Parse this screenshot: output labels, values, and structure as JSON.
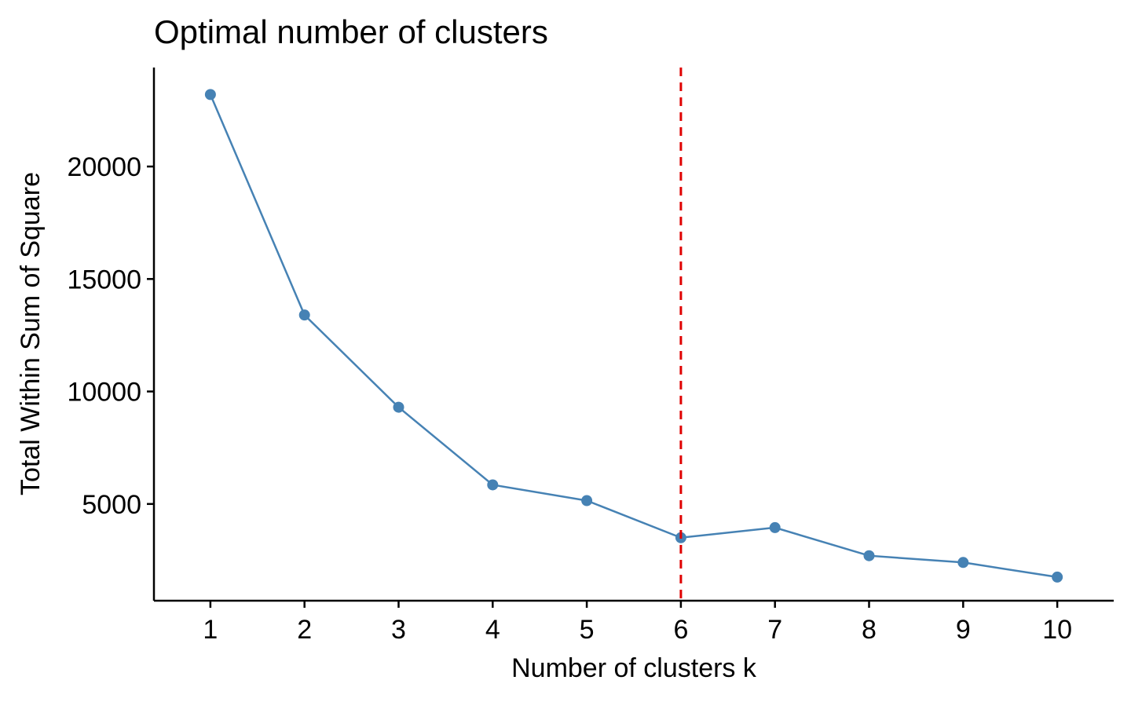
{
  "chart_data": {
    "type": "line",
    "title": "Optimal number of clusters",
    "xlabel": "Number of clusters k",
    "ylabel": "Total Within Sum of Square",
    "x": [
      1,
      2,
      3,
      4,
      5,
      6,
      7,
      8,
      9,
      10
    ],
    "xtick_labels": [
      "1",
      "2",
      "3",
      "4",
      "5",
      "6",
      "7",
      "8",
      "9",
      "10"
    ],
    "ytick_values": [
      5000,
      10000,
      15000,
      20000
    ],
    "ytick_labels": [
      "5000",
      "10000",
      "15000",
      "20000"
    ],
    "series": [
      {
        "values": [
          23200,
          13400,
          9300,
          5850,
          5150,
          3500,
          3950,
          2700,
          2400,
          1750
        ]
      }
    ],
    "xlim": [
      0.4,
      10.6
    ],
    "ylim": [
      700,
      24400
    ],
    "vline": {
      "x": 6,
      "style": "dashed",
      "color": "#e00000"
    },
    "grid": false,
    "legend": "none",
    "colors": {
      "series": "#4682b4",
      "vline": "#e00000",
      "axis": "#000000"
    }
  }
}
